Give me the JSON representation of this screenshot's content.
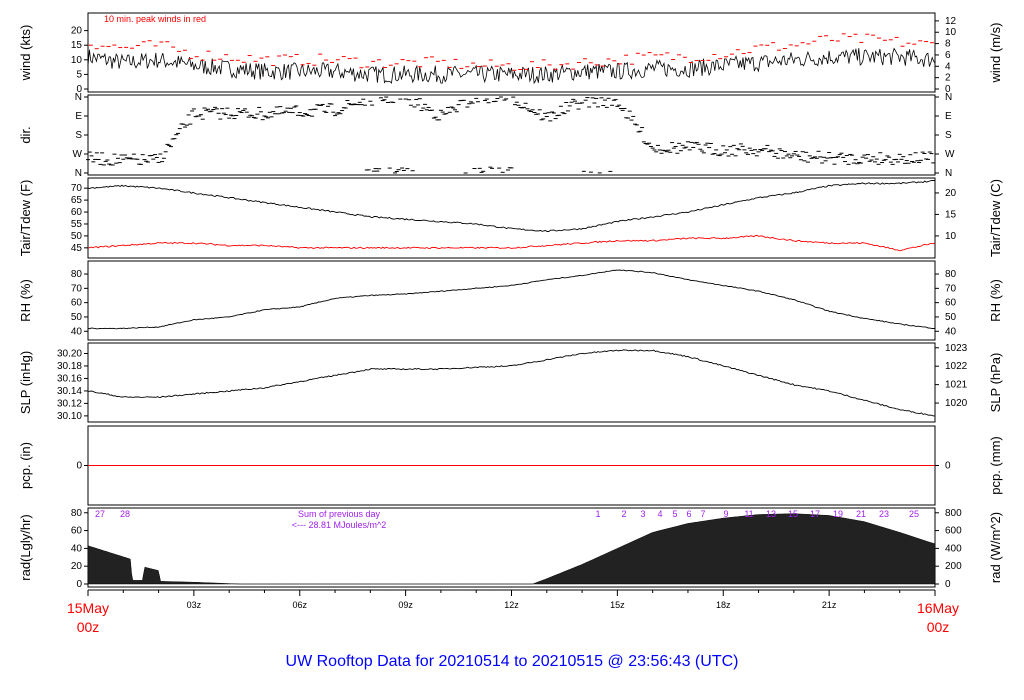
{
  "title": "UW Rooftop Data for 20210514  to  20210515 @ 23:56:43  (UTC)",
  "colors": {
    "line": "#000000",
    "red": "#ff0000",
    "purple": "#a020f0",
    "title": "#0000ff"
  },
  "chart_data": [
    {
      "type": "line",
      "panel": "wind",
      "ylabel": "wind (kts)",
      "ylabel_right": "wind (m/s)",
      "ylim": [
        0,
        25
      ],
      "yticks": [
        "0",
        "5",
        "10",
        "15",
        "20"
      ],
      "yticks_right": [
        "0",
        "2",
        "4",
        "6",
        "8",
        "10",
        "12"
      ],
      "annotation": "10 min. peak winds in red",
      "x_hours": [
        0,
        1,
        2,
        3,
        4,
        5,
        6,
        7,
        8,
        9,
        10,
        11,
        12,
        13,
        14,
        15,
        16,
        17,
        18,
        19,
        20,
        21,
        22,
        23,
        24
      ],
      "series": [
        {
          "name": "wind",
          "values": [
            11,
            9,
            10,
            8,
            7,
            6,
            6,
            6,
            5,
            5,
            5,
            5,
            5,
            5,
            6,
            6,
            7,
            7,
            8,
            9,
            10,
            11,
            11,
            11,
            10
          ]
        },
        {
          "name": "peak",
          "values": [
            16,
            14,
            15,
            12,
            11,
            10,
            10,
            10,
            9,
            9,
            9,
            8,
            8,
            8,
            9,
            10,
            11,
            11,
            12,
            14,
            15,
            17,
            17,
            16,
            15
          ]
        }
      ]
    },
    {
      "type": "scatter",
      "panel": "dir",
      "ylabel": "dir.",
      "yticks": [
        "N",
        "E",
        "S",
        "W",
        "N"
      ],
      "series": [
        {
          "name": "direction_deg",
          "values": [
            290,
            300,
            300,
            80,
            75,
            80,
            70,
            60,
            10,
            0,
            90,
            0,
            0,
            100,
            20,
            20,
            240,
            240,
            250,
            250,
            280,
            290,
            290,
            290,
            290
          ]
        }
      ]
    },
    {
      "type": "line",
      "panel": "temp",
      "ylabel": "Tair/Tdew (F)",
      "ylabel_right": "Tair/Tdew (C)",
      "ylim": [
        42,
        73
      ],
      "yticks": [
        "45",
        "50",
        "55",
        "60",
        "65",
        "70"
      ],
      "yticks_right": [
        "10",
        "15",
        "20"
      ],
      "series": [
        {
          "name": "Tair",
          "values": [
            70,
            71,
            70,
            68,
            66,
            64,
            62,
            60,
            58,
            57,
            56,
            55,
            53,
            52,
            53,
            56,
            58,
            60,
            63,
            66,
            68,
            71,
            72,
            72,
            73
          ]
        },
        {
          "name": "Tdew",
          "values": [
            45,
            46,
            47,
            47,
            46,
            46,
            45,
            45,
            45,
            45,
            45,
            45,
            45,
            46,
            47,
            48,
            48,
            49,
            49,
            50,
            48,
            47,
            47,
            44,
            47
          ]
        }
      ]
    },
    {
      "type": "line",
      "panel": "rh",
      "ylabel": "RH (%)",
      "ylabel_right": "RH (%)",
      "ylim": [
        36,
        87
      ],
      "yticks": [
        "40",
        "50",
        "60",
        "70",
        "80"
      ],
      "yticks_right": [
        "40",
        "50",
        "60",
        "70",
        "80"
      ],
      "series": [
        {
          "name": "RH",
          "values": [
            42,
            42,
            43,
            48,
            50,
            55,
            57,
            63,
            65,
            66,
            68,
            70,
            72,
            76,
            79,
            83,
            81,
            76,
            72,
            68,
            62,
            54,
            49,
            45,
            42
          ]
        }
      ]
    },
    {
      "type": "line",
      "panel": "slp",
      "ylabel": "SLP (inHg)",
      "ylabel_right": "SLP (hPa)",
      "ylim": [
        30.095,
        30.212
      ],
      "yticks": [
        "30.10",
        "30.12",
        "30.14",
        "30.16",
        "30.18",
        "30.20"
      ],
      "yticks_right": [
        "1020",
        "1021",
        "1022",
        "1023"
      ],
      "series": [
        {
          "name": "SLP",
          "values": [
            30.14,
            30.13,
            30.13,
            30.135,
            30.14,
            30.145,
            30.155,
            30.165,
            30.175,
            30.175,
            30.175,
            30.178,
            30.18,
            30.19,
            30.2,
            30.205,
            30.205,
            30.195,
            30.18,
            30.165,
            30.15,
            30.14,
            30.125,
            30.11,
            30.1
          ]
        }
      ]
    },
    {
      "type": "line",
      "panel": "pcp",
      "ylabel": "pcp. (in)",
      "ylabel_right": "pcp. (mm)",
      "yticks": [
        "0"
      ],
      "yticks_right": [
        "0"
      ],
      "series": [
        {
          "name": "pcp",
          "values": [
            0,
            0
          ]
        }
      ]
    },
    {
      "type": "area",
      "panel": "rad",
      "ylabel": "rad(Lgly/hr)",
      "ylabel_right": "rad (W/m^2)",
      "ylim": [
        0,
        82
      ],
      "yticks": [
        "0",
        "20",
        "40",
        "60",
        "80"
      ],
      "yticks_right": [
        "0",
        "200",
        "400",
        "600",
        "800"
      ],
      "sum_label": "Sum of previous day",
      "sum_value": "<--- 28.81 MJoules/m^2",
      "hour_labels_start": [
        "27",
        "28"
      ],
      "hour_labels_end": [
        "1",
        "2",
        "3",
        "4",
        "5",
        "6",
        "7",
        "9",
        "11",
        "13",
        "15",
        "17",
        "19",
        "21",
        "23",
        "25"
      ],
      "x_hours": [
        0,
        1.2,
        1.25,
        1.55,
        1.6,
        2.0,
        2.05,
        3,
        4.3,
        12.6,
        13,
        14,
        15,
        16,
        17,
        18,
        19,
        20,
        21,
        22,
        23,
        24
      ],
      "values": [
        43,
        28,
        4,
        4,
        19,
        15,
        3,
        2,
        0,
        0,
        6,
        22,
        40,
        58,
        68,
        74,
        78,
        79,
        77,
        70,
        58,
        45
      ]
    }
  ],
  "xaxis": {
    "ticks": [
      "03z",
      "06z",
      "09z",
      "12z",
      "15z",
      "18z",
      "21z"
    ],
    "start_date": "15May",
    "start_time": "00z",
    "end_date": "16May",
    "end_time": "00z"
  }
}
